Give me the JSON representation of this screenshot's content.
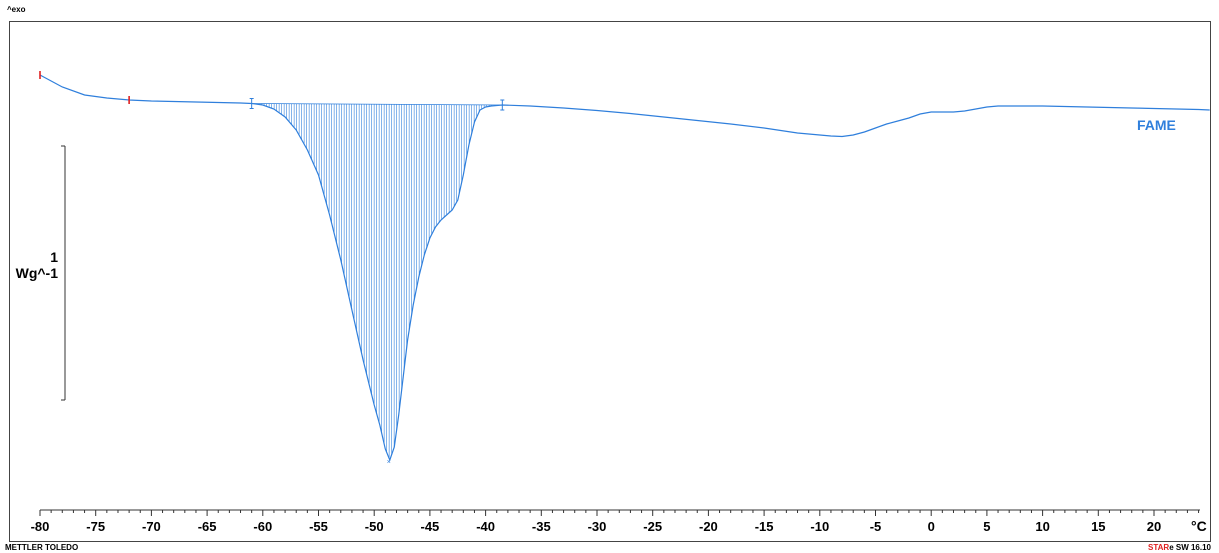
{
  "header": {
    "exo_label": "^exo"
  },
  "footer": {
    "brand": "METTLER TOLEDO",
    "software_star": "STAR",
    "software_rest": "e SW 16.10"
  },
  "colors": {
    "curve": "#2f7fdc",
    "series_label": "#2f7fdc",
    "marker_red": "#e02020",
    "axis": "#333333"
  },
  "chart_data": {
    "type": "line",
    "series": [
      {
        "name": "FAME",
        "x": [
          -80,
          -78,
          -76,
          -74,
          -72,
          -70,
          -68,
          -66,
          -64,
          -62,
          -61,
          -60,
          -59,
          -58,
          -57,
          -56,
          -55,
          -54,
          -53,
          -52,
          -51,
          -50,
          -49.5,
          -49,
          -48.6,
          -48.2,
          -47.8,
          -47.4,
          -47,
          -46.5,
          -46,
          -45.5,
          -45,
          -44.5,
          -44,
          -43.5,
          -43,
          -42.5,
          -42,
          -41.5,
          -41,
          -40.5,
          -40,
          -39.5,
          -39,
          -38.5,
          -36,
          -33,
          -30,
          -27,
          -24,
          -21,
          -18,
          -15,
          -12,
          -10,
          -9,
          -8,
          -7,
          -6,
          -5,
          -4,
          -3,
          -2,
          -1,
          0,
          1,
          2,
          3,
          4,
          5,
          6,
          8,
          10,
          12,
          14,
          16,
          18,
          20,
          22,
          24,
          25
        ],
        "y": [
          0.0,
          -0.12,
          -0.2,
          -0.23,
          -0.25,
          -0.26,
          -0.265,
          -0.27,
          -0.275,
          -0.28,
          -0.285,
          -0.3,
          -0.34,
          -0.42,
          -0.55,
          -0.75,
          -1.0,
          -1.4,
          -1.85,
          -2.35,
          -2.85,
          -3.3,
          -3.5,
          -3.74,
          -3.85,
          -3.72,
          -3.4,
          -3.02,
          -2.65,
          -2.3,
          -2.02,
          -1.8,
          -1.63,
          -1.52,
          -1.45,
          -1.4,
          -1.35,
          -1.25,
          -1.0,
          -0.7,
          -0.47,
          -0.35,
          -0.32,
          -0.31,
          -0.305,
          -0.3,
          -0.31,
          -0.33,
          -0.355,
          -0.385,
          -0.42,
          -0.455,
          -0.49,
          -0.53,
          -0.58,
          -0.6,
          -0.61,
          -0.615,
          -0.6,
          -0.57,
          -0.53,
          -0.49,
          -0.46,
          -0.43,
          -0.39,
          -0.37,
          -0.37,
          -0.37,
          -0.36,
          -0.34,
          -0.32,
          -0.31,
          -0.31,
          -0.31,
          -0.315,
          -0.32,
          -0.325,
          -0.33,
          -0.335,
          -0.34,
          -0.345,
          -0.35
        ]
      }
    ],
    "integration_range": [
      -61,
      -38.5
    ],
    "xlim": [
      -80,
      25
    ],
    "xticks": [
      -80,
      -75,
      -70,
      -65,
      -60,
      -55,
      -50,
      -45,
      -40,
      -35,
      -30,
      -25,
      -20,
      -15,
      -10,
      -5,
      0,
      5,
      10,
      15,
      20
    ],
    "xunit": "°C",
    "ylabel_value": "1",
    "ylabel_unit": "Wg^-1",
    "red_markers_x": [
      -80,
      -72
    ]
  }
}
